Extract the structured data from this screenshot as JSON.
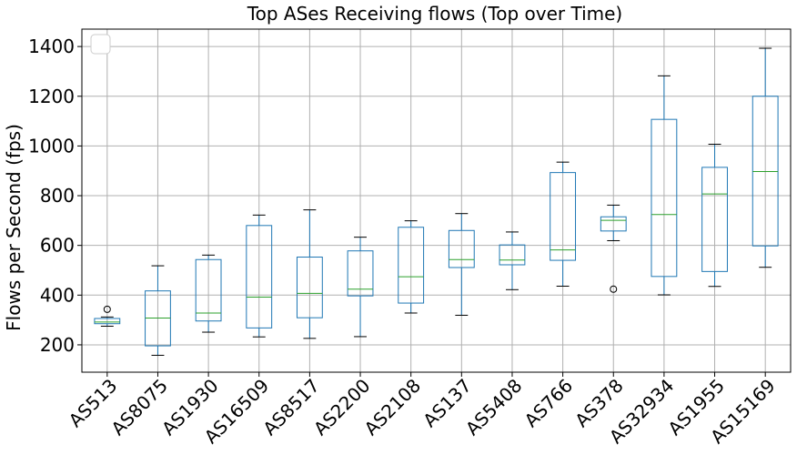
{
  "chart_data": {
    "type": "box",
    "title": "Top ASes Receiving flows (Top over Time)",
    "xlabel": "",
    "ylabel": "Flows per Second (fps)",
    "ylim": [
      90,
      1470
    ],
    "yticks": [
      200,
      400,
      600,
      800,
      1000,
      1200,
      1400
    ],
    "grid": true,
    "legend": "top-left (empty)",
    "colors": {
      "box": "#1f77b4",
      "median": "#2ca02c",
      "whisker_cap": "#000000",
      "flier": "#000000",
      "grid": "#b0b0b0"
    },
    "categories": [
      "AS513",
      "AS8075",
      "AS1930",
      "AS16509",
      "AS8517",
      "AS2200",
      "AS2108",
      "AS137",
      "AS5408",
      "AS766",
      "AS378",
      "AS32934",
      "AS1955",
      "AS15169"
    ],
    "boxes": [
      {
        "category": "AS513",
        "whislo": 275,
        "q1": 285,
        "med": 292,
        "q3": 306,
        "whishi": 312,
        "fliers": [
          343
        ]
      },
      {
        "category": "AS8075",
        "whislo": 158,
        "q1": 196,
        "med": 308,
        "q3": 417,
        "whishi": 518,
        "fliers": []
      },
      {
        "category": "AS1930",
        "whislo": 251,
        "q1": 296,
        "med": 328,
        "q3": 543,
        "whishi": 561,
        "fliers": []
      },
      {
        "category": "AS16509",
        "whislo": 232,
        "q1": 268,
        "med": 392,
        "q3": 680,
        "whishi": 722,
        "fliers": []
      },
      {
        "category": "AS8517",
        "whislo": 226,
        "q1": 309,
        "med": 407,
        "q3": 553,
        "whishi": 743,
        "fliers": []
      },
      {
        "category": "AS2200",
        "whislo": 233,
        "q1": 397,
        "med": 424,
        "q3": 578,
        "whishi": 633,
        "fliers": []
      },
      {
        "category": "AS2108",
        "whislo": 328,
        "q1": 368,
        "med": 474,
        "q3": 673,
        "whishi": 699,
        "fliers": []
      },
      {
        "category": "AS137",
        "whislo": 319,
        "q1": 511,
        "med": 543,
        "q3": 660,
        "whishi": 728,
        "fliers": []
      },
      {
        "category": "AS5408",
        "whislo": 422,
        "q1": 522,
        "med": 541,
        "q3": 602,
        "whishi": 654,
        "fliers": []
      },
      {
        "category": "AS766",
        "whislo": 436,
        "q1": 540,
        "med": 582,
        "q3": 893,
        "whishi": 935,
        "fliers": []
      },
      {
        "category": "AS378",
        "whislo": 619,
        "q1": 658,
        "med": 701,
        "q3": 715,
        "whishi": 762,
        "fliers": [
          424
        ]
      },
      {
        "category": "AS32934",
        "whislo": 401,
        "q1": 475,
        "med": 724,
        "q3": 1107,
        "whishi": 1282,
        "fliers": []
      },
      {
        "category": "AS1955",
        "whislo": 435,
        "q1": 495,
        "med": 807,
        "q3": 914,
        "whishi": 1007,
        "fliers": []
      },
      {
        "category": "AS15169",
        "whislo": 512,
        "q1": 598,
        "med": 897,
        "q3": 1200,
        "whishi": 1393,
        "fliers": []
      }
    ]
  }
}
